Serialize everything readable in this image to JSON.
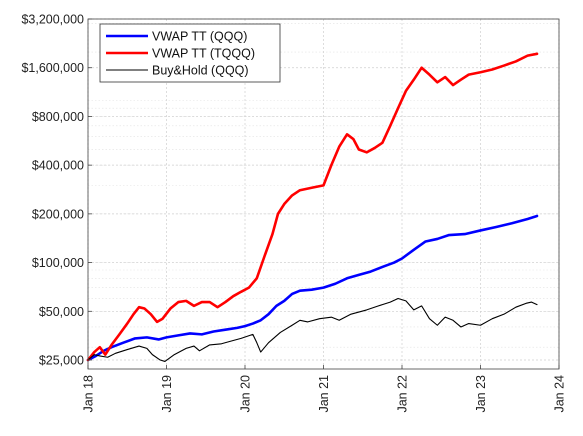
{
  "chart_data": {
    "type": "line",
    "title": "",
    "xlabel": "",
    "ylabel": "",
    "x_axis": {
      "range": [
        2018.0,
        2024.0
      ],
      "ticks": [
        {
          "value": 2018,
          "label": "Jan 18"
        },
        {
          "value": 2019,
          "label": "Jan 19"
        },
        {
          "value": 2020,
          "label": "Jan 20"
        },
        {
          "value": 2021,
          "label": "Jan 21"
        },
        {
          "value": 2022,
          "label": "Jan 22"
        },
        {
          "value": 2023,
          "label": "Jan 23"
        },
        {
          "value": 2024,
          "label": "Jan 24"
        }
      ]
    },
    "y_axis": {
      "scale": "log",
      "range": [
        22000,
        3200000
      ],
      "ticks": [
        {
          "value": 25000,
          "label": "$25,000"
        },
        {
          "value": 50000,
          "label": "$50,000"
        },
        {
          "value": 100000,
          "label": "$100,000"
        },
        {
          "value": 200000,
          "label": "$200,000"
        },
        {
          "value": 400000,
          "label": "$400,000"
        },
        {
          "value": 800000,
          "label": "$800,000"
        },
        {
          "value": 1600000,
          "label": "$1,600,000"
        },
        {
          "value": 3200000,
          "label": "$3,200,000"
        }
      ]
    },
    "grid": true,
    "legend": "top-left",
    "series": [
      {
        "name": "VWAP TT (QQQ)",
        "color": "#0000ff",
        "points": [
          [
            2018.0,
            25000
          ],
          [
            2018.1,
            26500
          ],
          [
            2018.2,
            28500
          ],
          [
            2018.3,
            30000
          ],
          [
            2018.45,
            32000
          ],
          [
            2018.6,
            34000
          ],
          [
            2018.75,
            34500
          ],
          [
            2018.9,
            33500
          ],
          [
            2019.0,
            34500
          ],
          [
            2019.15,
            35500
          ],
          [
            2019.3,
            36500
          ],
          [
            2019.45,
            36000
          ],
          [
            2019.6,
            37500
          ],
          [
            2019.75,
            38500
          ],
          [
            2019.9,
            39500
          ],
          [
            2020.0,
            40500
          ],
          [
            2020.1,
            42000
          ],
          [
            2020.2,
            44000
          ],
          [
            2020.3,
            48000
          ],
          [
            2020.4,
            54000
          ],
          [
            2020.5,
            58000
          ],
          [
            2020.6,
            64000
          ],
          [
            2020.7,
            67000
          ],
          [
            2020.85,
            68000
          ],
          [
            2021.0,
            70000
          ],
          [
            2021.15,
            74000
          ],
          [
            2021.3,
            80000
          ],
          [
            2021.45,
            84000
          ],
          [
            2021.6,
            88000
          ],
          [
            2021.75,
            94000
          ],
          [
            2021.9,
            100000
          ],
          [
            2022.0,
            106000
          ],
          [
            2022.15,
            120000
          ],
          [
            2022.3,
            135000
          ],
          [
            2022.45,
            140000
          ],
          [
            2022.6,
            148000
          ],
          [
            2022.8,
            150000
          ],
          [
            2023.0,
            158000
          ],
          [
            2023.2,
            166000
          ],
          [
            2023.4,
            175000
          ],
          [
            2023.6,
            186000
          ],
          [
            2023.72,
            194000
          ]
        ]
      },
      {
        "name": "VWAP TT (TQQQ)",
        "color": "#ff0000",
        "points": [
          [
            2018.0,
            25000
          ],
          [
            2018.08,
            28000
          ],
          [
            2018.15,
            30000
          ],
          [
            2018.22,
            27000
          ],
          [
            2018.3,
            31000
          ],
          [
            2018.4,
            36000
          ],
          [
            2018.5,
            42000
          ],
          [
            2018.58,
            48000
          ],
          [
            2018.65,
            53000
          ],
          [
            2018.72,
            52000
          ],
          [
            2018.8,
            48000
          ],
          [
            2018.88,
            43000
          ],
          [
            2018.95,
            45000
          ],
          [
            2019.05,
            52000
          ],
          [
            2019.15,
            57000
          ],
          [
            2019.25,
            58000
          ],
          [
            2019.35,
            54000
          ],
          [
            2019.45,
            57000
          ],
          [
            2019.55,
            57000
          ],
          [
            2019.65,
            53000
          ],
          [
            2019.75,
            57000
          ],
          [
            2019.85,
            62000
          ],
          [
            2019.95,
            66000
          ],
          [
            2020.05,
            70000
          ],
          [
            2020.15,
            80000
          ],
          [
            2020.25,
            110000
          ],
          [
            2020.35,
            150000
          ],
          [
            2020.42,
            200000
          ],
          [
            2020.5,
            230000
          ],
          [
            2020.6,
            260000
          ],
          [
            2020.7,
            280000
          ],
          [
            2020.85,
            290000
          ],
          [
            2021.0,
            300000
          ],
          [
            2021.1,
            400000
          ],
          [
            2021.2,
            520000
          ],
          [
            2021.3,
            620000
          ],
          [
            2021.38,
            580000
          ],
          [
            2021.45,
            500000
          ],
          [
            2021.55,
            480000
          ],
          [
            2021.65,
            510000
          ],
          [
            2021.75,
            550000
          ],
          [
            2021.85,
            700000
          ],
          [
            2021.95,
            900000
          ],
          [
            2022.05,
            1150000
          ],
          [
            2022.15,
            1350000
          ],
          [
            2022.25,
            1600000
          ],
          [
            2022.35,
            1450000
          ],
          [
            2022.45,
            1300000
          ],
          [
            2022.55,
            1400000
          ],
          [
            2022.65,
            1250000
          ],
          [
            2022.75,
            1350000
          ],
          [
            2022.85,
            1450000
          ],
          [
            2023.0,
            1500000
          ],
          [
            2023.15,
            1560000
          ],
          [
            2023.3,
            1650000
          ],
          [
            2023.45,
            1750000
          ],
          [
            2023.6,
            1900000
          ],
          [
            2023.72,
            1950000
          ]
        ]
      },
      {
        "name": "Buy&Hold (QQQ)",
        "color": "#000000",
        "points": [
          [
            2018.0,
            25000
          ],
          [
            2018.08,
            27000
          ],
          [
            2018.15,
            26500
          ],
          [
            2018.25,
            26000
          ],
          [
            2018.35,
            27500
          ],
          [
            2018.5,
            29000
          ],
          [
            2018.65,
            30500
          ],
          [
            2018.75,
            29500
          ],
          [
            2018.82,
            27000
          ],
          [
            2018.92,
            25000
          ],
          [
            2018.98,
            24500
          ],
          [
            2019.1,
            27000
          ],
          [
            2019.25,
            29500
          ],
          [
            2019.35,
            30500
          ],
          [
            2019.42,
            28500
          ],
          [
            2019.55,
            31000
          ],
          [
            2019.7,
            31500
          ],
          [
            2019.85,
            33000
          ],
          [
            2019.95,
            34000
          ],
          [
            2020.1,
            36000
          ],
          [
            2020.15,
            32000
          ],
          [
            2020.2,
            28000
          ],
          [
            2020.3,
            32000
          ],
          [
            2020.45,
            37000
          ],
          [
            2020.6,
            41000
          ],
          [
            2020.7,
            44000
          ],
          [
            2020.8,
            43000
          ],
          [
            2020.95,
            45000
          ],
          [
            2021.1,
            46000
          ],
          [
            2021.2,
            44000
          ],
          [
            2021.35,
            48000
          ],
          [
            2021.55,
            51000
          ],
          [
            2021.7,
            54000
          ],
          [
            2021.85,
            57000
          ],
          [
            2021.95,
            60000
          ],
          [
            2022.05,
            58000
          ],
          [
            2022.15,
            51000
          ],
          [
            2022.25,
            54000
          ],
          [
            2022.35,
            45000
          ],
          [
            2022.45,
            41000
          ],
          [
            2022.55,
            46000
          ],
          [
            2022.65,
            44000
          ],
          [
            2022.75,
            40000
          ],
          [
            2022.85,
            42000
          ],
          [
            2023.0,
            41000
          ],
          [
            2023.15,
            45000
          ],
          [
            2023.3,
            48000
          ],
          [
            2023.45,
            53000
          ],
          [
            2023.58,
            56000
          ],
          [
            2023.65,
            57000
          ],
          [
            2023.72,
            55000
          ]
        ]
      }
    ]
  }
}
